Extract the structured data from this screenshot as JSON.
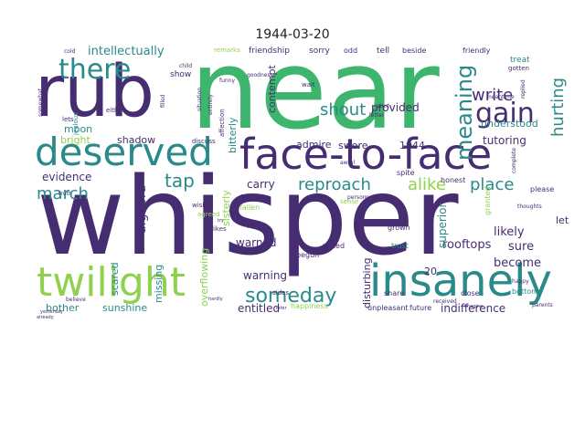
{
  "title": "1944-03-20",
  "words": [
    {
      "text": "near",
      "color": "#3db56c",
      "size": "xxl"
    },
    {
      "text": "whisper",
      "color": "#462d72",
      "size": "xxl"
    },
    {
      "text": "rub",
      "color": "#462d72",
      "size": "xl"
    },
    {
      "text": "face-to-face",
      "color": "#462d72",
      "size": "l"
    },
    {
      "text": "deserved",
      "color": "#2a8a8a",
      "size": "l"
    },
    {
      "text": "insanely",
      "color": "#2a8a8a",
      "size": "l"
    },
    {
      "text": "twilight",
      "color": "#8fd14f",
      "size": "l"
    },
    {
      "text": "there",
      "color": "#2a8a8a",
      "size": "m"
    },
    {
      "text": "gain",
      "color": "#462d72",
      "size": "m"
    },
    {
      "text": "meaning",
      "color": "#2a8a8a",
      "size": "m"
    },
    {
      "text": "someday",
      "color": "#2a8a8a",
      "size": "m"
    },
    {
      "text": "reproach",
      "color": "#2a8a8a",
      "size": "s"
    },
    {
      "text": "shout",
      "color": "#2a8a8a",
      "size": "s"
    },
    {
      "text": "write",
      "color": "#462d72",
      "size": "s"
    },
    {
      "text": "hurting",
      "color": "#2a8a8a",
      "size": "s"
    },
    {
      "text": "alike",
      "color": "#8fd14f",
      "size": "s"
    },
    {
      "text": "place",
      "color": "#2a8a8a",
      "size": "s"
    },
    {
      "text": "march",
      "color": "#2a8a8a",
      "size": "s"
    },
    {
      "text": "tap",
      "color": "#2a8a8a",
      "size": "s"
    },
    {
      "text": "intellectually",
      "color": "#2a8a8a",
      "size": "xs"
    },
    {
      "text": "evidence",
      "color": "#462d72",
      "size": "xs"
    },
    {
      "text": "shadow",
      "color": "#462d72",
      "size": "xs"
    },
    {
      "text": "moon",
      "color": "#2a8a8a",
      "size": "xs"
    },
    {
      "text": "bright",
      "color": "#8fd14f",
      "size": "xs"
    },
    {
      "text": "provided",
      "color": "#462d72",
      "size": "xs"
    },
    {
      "text": "understood",
      "color": "#2a8a8a",
      "size": "xs"
    },
    {
      "text": "tutoring",
      "color": "#462d72",
      "size": "xs"
    },
    {
      "text": "swore",
      "color": "#462d72",
      "size": "xs"
    },
    {
      "text": "1944",
      "color": "#462d72",
      "size": "xs"
    },
    {
      "text": "admire",
      "color": "#462d72",
      "size": "xs"
    },
    {
      "text": "gaze",
      "color": "#462d72",
      "size": "xs"
    },
    {
      "text": "carry",
      "color": "#462d72",
      "size": "xs"
    },
    {
      "text": "warned",
      "color": "#462d72",
      "size": "xs"
    },
    {
      "text": "warning",
      "color": "#462d72",
      "size": "xs"
    },
    {
      "text": "entitled",
      "color": "#462d72",
      "size": "xs"
    },
    {
      "text": "rooftops",
      "color": "#462d72",
      "size": "xs"
    },
    {
      "text": "become",
      "color": "#462d72",
      "size": "xs"
    },
    {
      "text": "likely",
      "color": "#462d72",
      "size": "xs"
    },
    {
      "text": "sure",
      "color": "#462d72",
      "size": "xs"
    },
    {
      "text": "indifference",
      "color": "#462d72",
      "size": "xs"
    },
    {
      "text": "bother",
      "color": "#2a8a8a",
      "size": "xs"
    },
    {
      "text": "sunshine",
      "color": "#2a8a8a",
      "size": "xs"
    },
    {
      "text": "algebra",
      "color": "#462d72",
      "size": "xs"
    },
    {
      "text": "superior",
      "color": "#2a8a8a",
      "size": "xs"
    },
    {
      "text": "disturbing",
      "color": "#462d72",
      "size": "xs"
    },
    {
      "text": "contempt",
      "color": "#462d72",
      "size": "xs"
    },
    {
      "text": "bitterly",
      "color": "#2a8a8a",
      "size": "xs"
    },
    {
      "text": "sisterly",
      "color": "#8fd14f",
      "size": "xs"
    },
    {
      "text": "overflowing",
      "color": "#8fd14f",
      "size": "xs"
    },
    {
      "text": "missing",
      "color": "#2a8a8a",
      "size": "xs"
    },
    {
      "text": "scared",
      "color": "#2a8a8a",
      "size": "xs"
    },
    {
      "text": "let",
      "color": "#462d72",
      "size": "xs"
    },
    {
      "text": "20",
      "color": "#462d72",
      "size": "xs"
    },
    {
      "text": "friendship",
      "color": "#462d72",
      "size": "xxs"
    },
    {
      "text": "sorry",
      "color": "#462d72",
      "size": "xxs"
    },
    {
      "text": "friendly",
      "color": "#462d72",
      "size": "xxs"
    },
    {
      "text": "treat",
      "color": "#2a8a8a",
      "size": "xxs"
    },
    {
      "text": "tell",
      "color": "#462d72",
      "size": "xxs"
    },
    {
      "text": "odd",
      "color": "#462d72",
      "size": "xxs"
    },
    {
      "text": "beside",
      "color": "#462d72",
      "size": "xxs"
    },
    {
      "text": "show",
      "color": "#462d72",
      "size": "xxs"
    },
    {
      "text": "remarks",
      "color": "#8fd14f",
      "size": "xxs"
    },
    {
      "text": "please",
      "color": "#462d72",
      "size": "xxs"
    },
    {
      "text": "trust",
      "color": "#2a8a8a",
      "size": "xxs"
    },
    {
      "text": "grown",
      "color": "#462d72",
      "size": "xxs"
    },
    {
      "text": "granted",
      "color": "#8fd14f",
      "size": "xxs"
    },
    {
      "text": "spite",
      "color": "#462d72",
      "size": "xxs"
    },
    {
      "text": "honest",
      "color": "#462d72",
      "size": "xxs"
    },
    {
      "text": "added",
      "color": "#462d72",
      "size": "xxs"
    },
    {
      "text": "like",
      "color": "#462d72",
      "size": "xxs"
    },
    {
      "text": "likes",
      "color": "#462d72",
      "size": "xxs"
    },
    {
      "text": "begun",
      "color": "#462d72",
      "size": "xxs"
    },
    {
      "text": "fallen",
      "color": "#8fd14f",
      "size": "xxs"
    },
    {
      "text": "agreed",
      "color": "#8fd14f",
      "size": "xxs"
    },
    {
      "text": "wish",
      "color": "#462d72",
      "size": "xxs"
    },
    {
      "text": "happiness",
      "color": "#8fd14f",
      "size": "xxs"
    },
    {
      "text": "unpleasant",
      "color": "#462d72",
      "size": "xxs"
    },
    {
      "text": "future",
      "color": "#462d72",
      "size": "xxs"
    },
    {
      "text": "share",
      "color": "#462d72",
      "size": "xxs"
    },
    {
      "text": "close",
      "color": "#462d72",
      "size": "xxs"
    },
    {
      "text": "bottom",
      "color": "#2a8a8a",
      "size": "xxs"
    },
    {
      "text": "sense",
      "color": "#8fd14f",
      "size": "xxs"
    },
    {
      "text": "discuss",
      "color": "#462d72",
      "size": "xxs"
    },
    {
      "text": "jealous",
      "color": "#2a8a8a",
      "size": "xxs"
    },
    {
      "text": "lets",
      "color": "#462d72",
      "size": "xxs"
    },
    {
      "text": "either",
      "color": "#462d72",
      "size": "xxs"
    },
    {
      "text": "cold",
      "color": "#462d72",
      "size": "xxs"
    },
    {
      "text": "child",
      "color": "#462d72",
      "size": "xxs"
    },
    {
      "text": "funny",
      "color": "#462d72",
      "size": "xxs"
    },
    {
      "text": "wait",
      "color": "#462d72",
      "size": "xxs"
    },
    {
      "text": "filled",
      "color": "#462d72",
      "size": "xxs"
    },
    {
      "text": "affection",
      "color": "#462d72",
      "size": "xxs"
    },
    {
      "text": "entirely",
      "color": "#462d72",
      "size": "xxs"
    },
    {
      "text": "situation",
      "color": "#462d72",
      "size": "xxs"
    },
    {
      "text": "goodness",
      "color": "#462d72",
      "size": "xxs"
    },
    {
      "text": "gotten",
      "color": "#462d72",
      "size": "xxs"
    },
    {
      "text": "meantime",
      "color": "#462d72",
      "size": "xxs"
    },
    {
      "text": "letter",
      "color": "#462d72",
      "size": "xxs"
    },
    {
      "text": "start",
      "color": "#462d72",
      "size": "xxs"
    },
    {
      "text": "truth",
      "color": "#462d72",
      "size": "xxs"
    },
    {
      "text": "happy",
      "color": "#462d72",
      "size": "xxs"
    },
    {
      "text": "received",
      "color": "#462d72",
      "size": "xxs"
    },
    {
      "text": "somewhat",
      "color": "#462d72",
      "size": "xxs"
    },
    {
      "text": "believe",
      "color": "#462d72",
      "size": "xxs"
    },
    {
      "text": "imagine",
      "color": "#462d72",
      "size": "xxs"
    },
    {
      "text": "sides",
      "color": "#462d72",
      "size": "xxs"
    },
    {
      "text": "perhaps",
      "color": "#462d72",
      "size": "xxs"
    },
    {
      "text": "person",
      "color": "#462d72",
      "size": "xxs"
    },
    {
      "text": "thoughts",
      "color": "#462d72",
      "size": "xxs"
    },
    {
      "text": "parents",
      "color": "#462d72",
      "size": "xxs"
    },
    {
      "text": "replied",
      "color": "#462d72",
      "size": "xxs"
    },
    {
      "text": "complete",
      "color": "#462d72",
      "size": "xxs"
    },
    {
      "text": "yesterday",
      "color": "#462d72",
      "size": "xxs"
    },
    {
      "text": "already",
      "color": "#462d72",
      "size": "xxs"
    },
    {
      "text": "hardly",
      "color": "#462d72",
      "size": "xxs"
    },
    {
      "text": "later",
      "color": "#462d72",
      "size": "xxs"
    },
    {
      "text": "try",
      "color": "#462d72",
      "size": "xxs"
    },
    {
      "text": "awful",
      "color": "#462d72",
      "size": "xxs"
    }
  ]
}
